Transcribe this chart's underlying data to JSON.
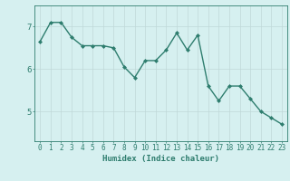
{
  "x": [
    0,
    1,
    2,
    3,
    4,
    5,
    6,
    7,
    8,
    9,
    10,
    11,
    12,
    13,
    14,
    15,
    16,
    17,
    18,
    19,
    20,
    21,
    22,
    23
  ],
  "y": [
    6.65,
    7.1,
    7.1,
    6.75,
    6.55,
    6.55,
    6.55,
    6.5,
    6.05,
    5.8,
    6.2,
    6.2,
    6.45,
    6.85,
    6.45,
    6.8,
    5.6,
    5.25,
    5.6,
    5.6,
    5.3,
    5.0,
    4.85,
    4.7
  ],
  "line_color": "#2e7d6e",
  "marker": "D",
  "marker_size": 2.0,
  "bg_color": "#d6f0f0",
  "grid_color": "#c0d8d8",
  "axis_color": "#2e7d6e",
  "xlabel": "Humidex (Indice chaleur)",
  "xlabel_fontsize": 6.5,
  "ytick_labels": [
    "5",
    "6",
    "7"
  ],
  "ytick_values": [
    5,
    6,
    7
  ],
  "ylim": [
    4.3,
    7.5
  ],
  "xlim": [
    -0.5,
    23.5
  ],
  "tick_fontsize": 5.5,
  "line_width": 1.0
}
